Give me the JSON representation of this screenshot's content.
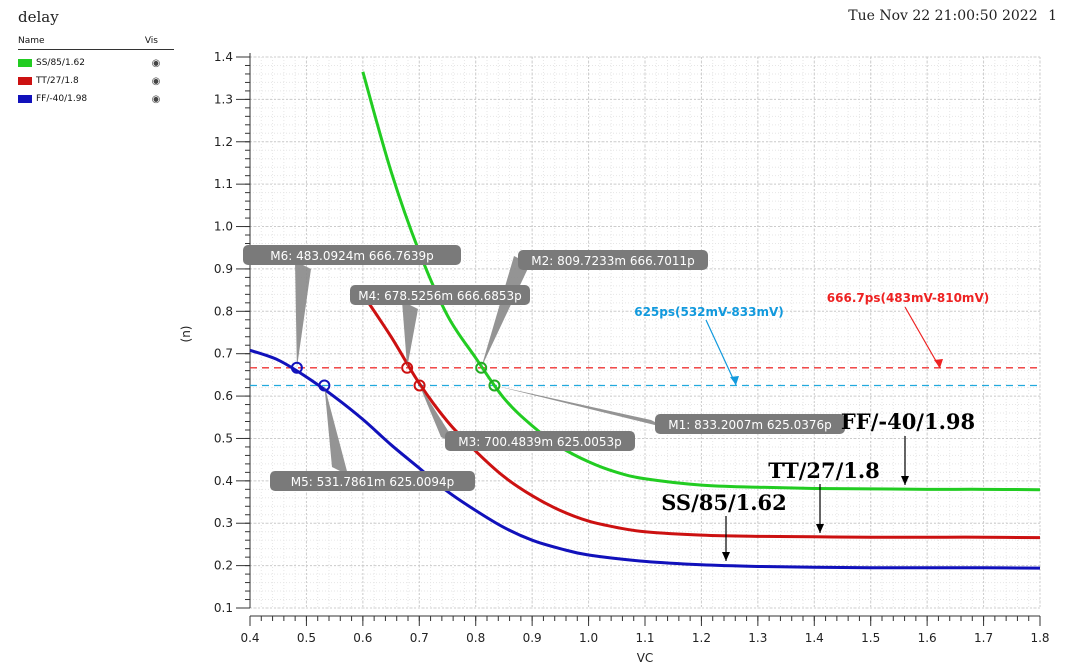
{
  "window": {
    "title": "delay",
    "timestamp": "Tue Nov 22 21:00:50 2022",
    "page_number": "1"
  },
  "legend": {
    "col_name": "Name",
    "col_vis": "Vis",
    "items": [
      {
        "name": "SS/85/1.62",
        "color": "#22cc22",
        "icon": "eye-icon"
      },
      {
        "name": "TT/27/1.8",
        "color": "#cc1111",
        "icon": "eye-icon"
      },
      {
        "name": "FF/-40/1.98",
        "color": "#1111bb",
        "icon": "eye-icon"
      }
    ]
  },
  "chart_data": {
    "type": "line",
    "title": "delay",
    "xlabel": "VC",
    "ylabel": "(n)",
    "xlim": [
      0.4,
      1.8
    ],
    "ylim": [
      0.1,
      1.4
    ],
    "grid": true,
    "x_ticks": [
      "0.4",
      "0.5",
      "0.6",
      "0.7",
      "0.8",
      "0.9",
      "1.0",
      "1.1",
      "1.2",
      "1.3",
      "1.4",
      "1.5",
      "1.6",
      "1.7",
      "1.8"
    ],
    "y_ticks": [
      "0.1",
      "0.2",
      "0.3",
      "0.4",
      "0.5",
      "0.6",
      "0.7",
      "0.8",
      "0.9",
      "1.0",
      "1.1",
      "1.2",
      "1.3",
      "1.4"
    ],
    "series": [
      {
        "name": "SS/85/1.62",
        "color": "#22cc22",
        "x": [
          0.6,
          0.65,
          0.7,
          0.75,
          0.8,
          0.85,
          0.9,
          0.95,
          1.0,
          1.05,
          1.1,
          1.2,
          1.3,
          1.4,
          1.5,
          1.6,
          1.7,
          1.8
        ],
        "y": [
          1.365,
          1.13,
          0.94,
          0.79,
          0.69,
          0.595,
          0.53,
          0.48,
          0.445,
          0.42,
          0.405,
          0.39,
          0.385,
          0.382,
          0.381,
          0.38,
          0.38,
          0.379
        ]
      },
      {
        "name": "TT/27/1.8",
        "color": "#cc1111",
        "x": [
          0.6,
          0.65,
          0.7,
          0.75,
          0.8,
          0.85,
          0.9,
          0.95,
          1.0,
          1.05,
          1.1,
          1.2,
          1.3,
          1.4,
          1.5,
          1.6,
          1.7,
          1.8
        ],
        "y": [
          0.84,
          0.74,
          0.63,
          0.54,
          0.47,
          0.41,
          0.365,
          0.33,
          0.305,
          0.29,
          0.28,
          0.272,
          0.269,
          0.268,
          0.267,
          0.267,
          0.267,
          0.266
        ]
      },
      {
        "name": "FF/-40/1.98",
        "color": "#1111bb",
        "x": [
          0.4,
          0.45,
          0.5,
          0.55,
          0.6,
          0.65,
          0.7,
          0.75,
          0.8,
          0.85,
          0.9,
          0.95,
          1.0,
          1.1,
          1.2,
          1.3,
          1.4,
          1.5,
          1.6,
          1.7,
          1.8
        ],
        "y": [
          0.708,
          0.685,
          0.645,
          0.598,
          0.545,
          0.485,
          0.43,
          0.375,
          0.33,
          0.29,
          0.26,
          0.24,
          0.225,
          0.21,
          0.202,
          0.198,
          0.196,
          0.195,
          0.195,
          0.195,
          0.194
        ]
      }
    ],
    "reference_lines": [
      {
        "y": 0.6667,
        "color": "#ee3333"
      },
      {
        "y": 0.625,
        "color": "#22aadd"
      }
    ],
    "markers": [
      {
        "text": "M1: 833.2007m 625.0376p",
        "x": 0.8332,
        "y": 0.625,
        "color": "#22aa22"
      },
      {
        "text": "M2: 809.7233m 666.7011p",
        "x": 0.8097,
        "y": 0.6667,
        "color": "#22aa22"
      },
      {
        "text": "M3: 700.4839m 625.0053p",
        "x": 0.7005,
        "y": 0.625,
        "color": "#cc1111"
      },
      {
        "text": "M4: 678.5256m 666.6853p",
        "x": 0.6785,
        "y": 0.6667,
        "color": "#cc1111"
      },
      {
        "text": "M5: 531.7861m 625.0094p",
        "x": 0.5318,
        "y": 0.625,
        "color": "#1111bb"
      },
      {
        "text": "M6: 483.0924m 666.7639p",
        "x": 0.4831,
        "y": 0.6668,
        "color": "#1111bb"
      }
    ],
    "annotations": [
      {
        "text": "666.7ps(483mV-810mV)",
        "color": "#ee2222"
      },
      {
        "text": "625ps(532mV-833mV)",
        "color": "#1199dd"
      }
    ],
    "curve_labels": [
      "FF/-40/1.98",
      "TT/27/1.8",
      "SS/85/1.62"
    ]
  }
}
